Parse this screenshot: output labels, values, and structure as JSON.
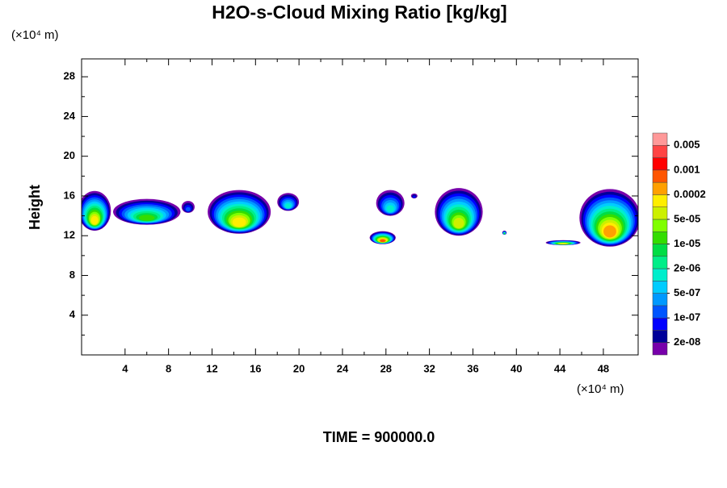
{
  "chart_data": {
    "type": "contour",
    "title": "H2O-s-Cloud Mixing Ratio [kg/kg]",
    "ylabel": "Height",
    "yunit": "(×10⁴ m)",
    "xunit": "(×10⁴ m)",
    "footer": "TIME = 900000.0",
    "xlim": [
      0,
      51.2
    ],
    "ylim": [
      0,
      29.8
    ],
    "xticks": [
      4,
      8,
      12,
      16,
      20,
      24,
      28,
      32,
      36,
      40,
      44,
      48
    ],
    "yticks": [
      4,
      8,
      12,
      16,
      20,
      24,
      28
    ],
    "colorbar": {
      "colors": [
        "#7700aa",
        "#000099",
        "#0000ff",
        "#0055ff",
        "#0099ff",
        "#00ccff",
        "#00eecc",
        "#00ee88",
        "#00dd44",
        "#33dd00",
        "#80ff00",
        "#ccf000",
        "#ffee00",
        "#ffa000",
        "#ff5500",
        "#ff0000",
        "#ff4444",
        "#ff9999"
      ],
      "ticks": [
        {
          "value": 2e-08,
          "label": "2e-08"
        },
        {
          "value": 1e-07,
          "label": "1e-07"
        },
        {
          "value": 5e-07,
          "label": "5e-07"
        },
        {
          "value": 2e-06,
          "label": "2e-06"
        },
        {
          "value": 1e-05,
          "label": "1e-05"
        },
        {
          "value": 5e-05,
          "label": "5e-05"
        },
        0.0002,
        0.001,
        0.005
      ]
    },
    "clouds": [
      {
        "x": 1.2,
        "y": 14.5,
        "width": 3,
        "height": 4,
        "value": 0.0001
      },
      {
        "x": 6,
        "y": 14.4,
        "width": 6.2,
        "height": 2.6,
        "value": 1e-05
      },
      {
        "x": 9.8,
        "y": 14.9,
        "width": 1.2,
        "height": 1.2,
        "value": 2e-07
      },
      {
        "x": 14.5,
        "y": 14.4,
        "width": 5.8,
        "height": 4.4,
        "value": 0.0001
      },
      {
        "x": 19,
        "y": 15.4,
        "width": 2,
        "height": 1.8,
        "value": 1e-06
      },
      {
        "x": 28.4,
        "y": 15.3,
        "width": 2.6,
        "height": 2.6,
        "value": 1e-06
      },
      {
        "x": 27.7,
        "y": 11.8,
        "width": 2.4,
        "height": 1.3,
        "value": 0.0005
      },
      {
        "x": 30.6,
        "y": 16,
        "width": 0.6,
        "height": 0.5,
        "value": 5e-08
      },
      {
        "x": 34.7,
        "y": 14.4,
        "width": 4.4,
        "height": 4.8,
        "value": 5e-05
      },
      {
        "x": 38.9,
        "y": 12.3,
        "width": 0.4,
        "height": 0.4,
        "value": 2e-05
      },
      {
        "x": 44.3,
        "y": 11.3,
        "width": 3.2,
        "height": 0.5,
        "value": 0.0001
      },
      {
        "x": 48.6,
        "y": 13.8,
        "width": 5.6,
        "height": 5.8,
        "value": 0.0002
      }
    ]
  }
}
